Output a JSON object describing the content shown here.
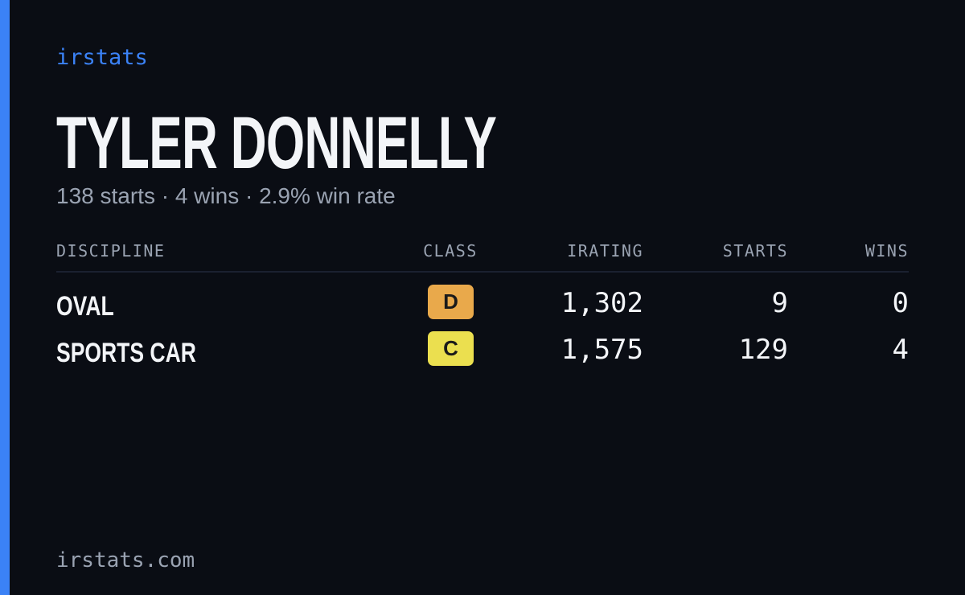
{
  "header": {
    "brand": "irstats",
    "name": "TYLER DONNELLY",
    "summary": "138 starts · 4 wins · 2.9% win rate"
  },
  "table": {
    "columns": [
      "DISCIPLINE",
      "CLASS",
      "IRATING",
      "STARTS",
      "WINS"
    ],
    "rows": [
      [
        "OVAL",
        "D",
        "1,302",
        "9",
        "0"
      ],
      [
        "SPORTS CAR",
        "C",
        "1,575",
        "129",
        "4"
      ]
    ]
  },
  "footer": {
    "url": "irstats.com"
  }
}
